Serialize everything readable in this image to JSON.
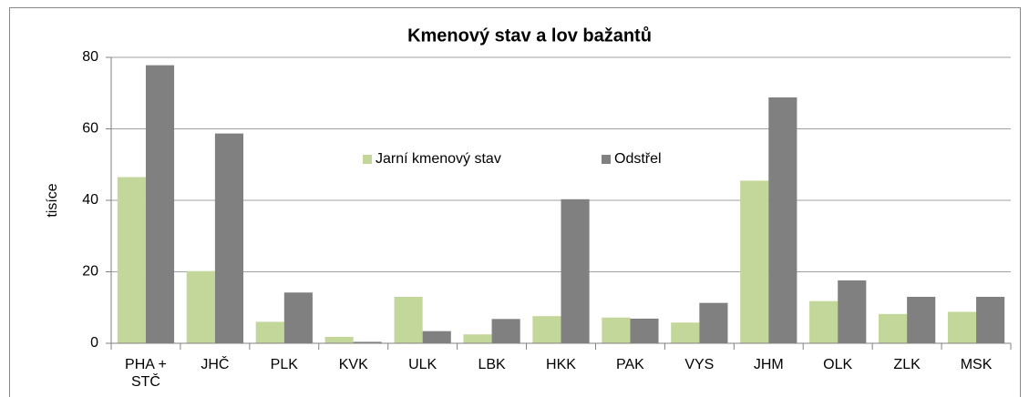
{
  "chart_data": {
    "type": "bar",
    "title": "Kmenový stav a lov bažantů",
    "y_label": "tisíce",
    "categories": [
      "PHA + STČ",
      "JHČ",
      "PLK",
      "KVK",
      "ULK",
      "LBK",
      "HKK",
      "PAK",
      "VYS",
      "JHM",
      "OLK",
      "ZLK",
      "MSK"
    ],
    "series": [
      {
        "name": "Jarní kmenový stav",
        "color": "#c4d79b",
        "values": [
          46.5,
          20.2,
          6,
          1.8,
          13,
          2.5,
          7.6,
          7.2,
          5.8,
          45.5,
          11.8,
          8.2,
          8.8
        ]
      },
      {
        "name": "Odstřel",
        "color": "#808080",
        "values": [
          77.8,
          58.7,
          14.2,
          0.4,
          3.4,
          6.8,
          40.3,
          6.9,
          11.3,
          68.8,
          17.6,
          13,
          13
        ]
      }
    ],
    "ylim": [
      0,
      80
    ],
    "yticks": [
      0,
      20,
      40,
      60,
      80
    ],
    "grid": true,
    "legend": "center"
  }
}
